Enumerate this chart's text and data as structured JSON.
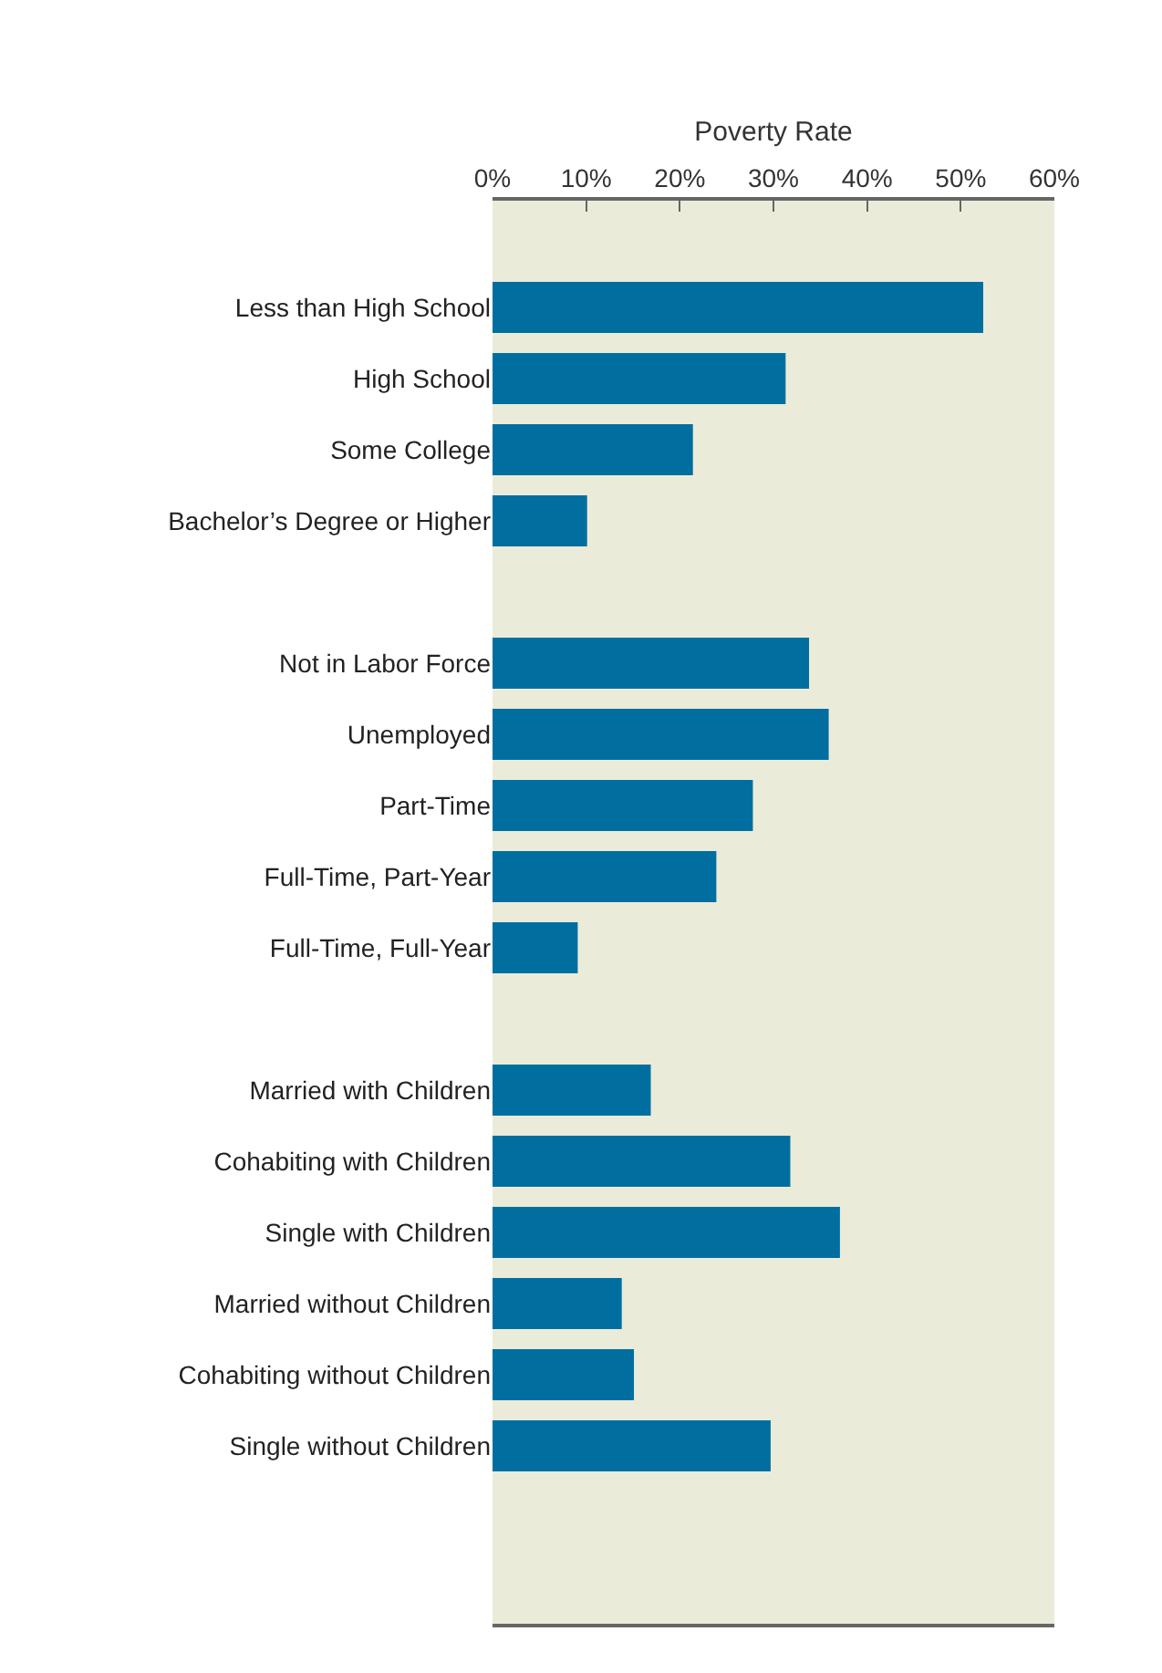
{
  "chart_data": {
    "type": "bar",
    "orientation": "horizontal",
    "xlabel": "Poverty Rate",
    "categories": [
      null,
      "Less than High School",
      "High School",
      "Some College",
      "Bachelor’s Degree or Higher",
      null,
      "Not in Labor Force",
      "Unemployed",
      "Part-Time",
      "Full-Time, Part-Year",
      "Full-Time, Full-Year",
      null,
      "Married with Children",
      "Cohabiting with Children",
      "Single with Children",
      "Married without Children",
      "Cohabiting without Children",
      "Single without Children",
      null,
      null
    ],
    "values": [
      null,
      52.4,
      31.3,
      21.4,
      10.1,
      null,
      33.8,
      35.9,
      27.8,
      23.9,
      9.1,
      null,
      16.9,
      31.8,
      37.1,
      13.8,
      15.1,
      29.7,
      null,
      null
    ],
    "color": "#006fa0",
    "xlim": [
      0,
      60
    ],
    "xticks": [
      {
        "value": 0,
        "label": "0%"
      },
      {
        "value": 10,
        "label": "10%"
      },
      {
        "value": 20,
        "label": "20%"
      },
      {
        "value": 30,
        "label": "30%"
      },
      {
        "value": 40,
        "label": "40%"
      },
      {
        "value": 50,
        "label": "50%"
      },
      {
        "value": 60,
        "label": "60%"
      }
    ],
    "grid": false,
    "legend": false
  }
}
